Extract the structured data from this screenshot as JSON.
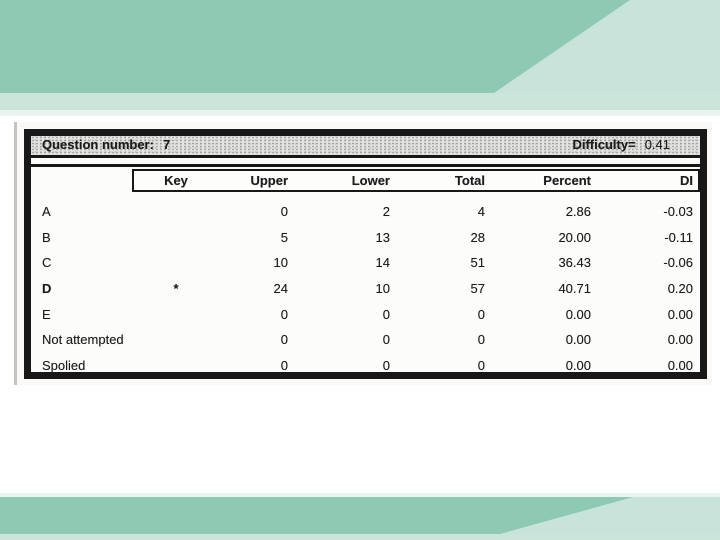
{
  "background": {
    "band_dark": "#8ec9b4",
    "band_light": "#c8e3d9",
    "strip_light": "#cbe5db",
    "strip_faint": "#e9f4ef"
  },
  "report": {
    "title_label": "Question number:",
    "title_value": "7",
    "difficulty_label": "Difficulty=",
    "difficulty_value": "0.41",
    "columns": [
      "Key",
      "Upper",
      "Lower",
      "Total",
      "Percent",
      "DI"
    ],
    "rows": [
      {
        "label": "A",
        "key": "",
        "upper": "0",
        "lower": "2",
        "total": "4",
        "percent": "2.86",
        "di": "-0.03"
      },
      {
        "label": "B",
        "key": "",
        "upper": "5",
        "lower": "13",
        "total": "28",
        "percent": "20.00",
        "di": "-0.11"
      },
      {
        "label": "C",
        "key": "",
        "upper": "10",
        "lower": "14",
        "total": "51",
        "percent": "36.43",
        "di": "-0.06"
      },
      {
        "label": "D",
        "key": "*",
        "upper": "24",
        "lower": "10",
        "total": "57",
        "percent": "40.71",
        "di": "0.20"
      },
      {
        "label": "E",
        "key": "",
        "upper": "0",
        "lower": "0",
        "total": "0",
        "percent": "0.00",
        "di": "0.00"
      },
      {
        "label": "Not attempted",
        "key": "",
        "upper": "0",
        "lower": "0",
        "total": "0",
        "percent": "0.00",
        "di": "0.00"
      },
      {
        "label": "Spolied",
        "key": "",
        "upper": "0",
        "lower": "0",
        "total": "0",
        "percent": "0.00",
        "di": "0.00"
      }
    ]
  }
}
